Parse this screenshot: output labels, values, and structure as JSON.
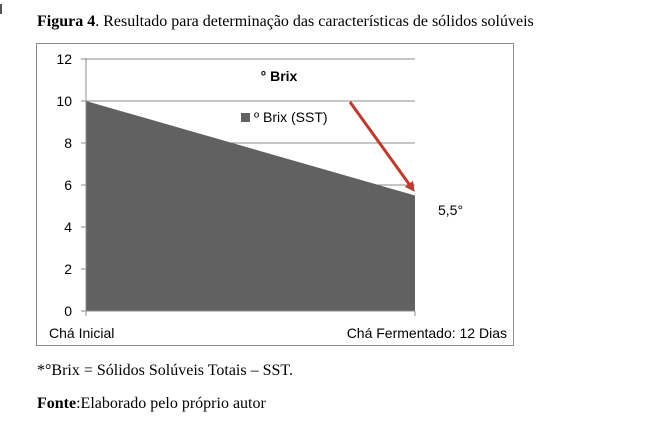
{
  "figure": {
    "label": "Figura 4",
    "caption_text": ". Resultado para determinação das características de sólidos solúveis"
  },
  "chart_data": {
    "type": "area",
    "title": "° Brix",
    "categories": [
      "Chá Inicial",
      "Chá Fermentado: 12 Dias"
    ],
    "series": [
      {
        "name": "º Brix (SST)",
        "values": [
          10,
          5.5
        ],
        "color": "#616161"
      }
    ],
    "ylim": [
      0,
      12
    ],
    "yticks": [
      "0",
      "2",
      "4",
      "6",
      "8",
      "10",
      "12"
    ],
    "grid": true,
    "legend": "top-center",
    "annotation": {
      "text": "5,5°",
      "target_category": "Chá Fermentado: 12 Dias",
      "target_value": 5.5,
      "arrow_color": "#c0392b"
    }
  },
  "footnote": {
    "marker": "*",
    "text": "°Brix = Sólidos Solúveis Totais – SST."
  },
  "source": {
    "label": "Fonte",
    "text": ":Elaborado pelo próprio autor"
  }
}
